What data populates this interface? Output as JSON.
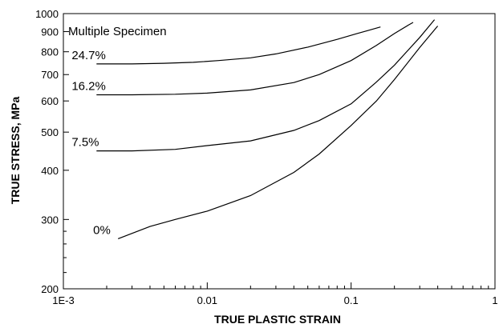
{
  "chart_data": {
    "type": "line",
    "title": "",
    "xlabel": "TRUE PLASTIC STRAIN",
    "ylabel": "TRUE STRESS, MPa",
    "xscale": "log",
    "yscale": "log",
    "xlim": [
      0.001,
      1
    ],
    "ylim": [
      200,
      1000
    ],
    "xtick_labels": [
      "1E-3",
      "0.01",
      "0.1",
      "1"
    ],
    "xtick_values": [
      0.001,
      0.01,
      0.1,
      1
    ],
    "ytick_labels": [
      "200",
      "300",
      "400",
      "500",
      "600",
      "700",
      "800",
      "900",
      "1000"
    ],
    "ytick_values": [
      200,
      300,
      400,
      500,
      600,
      700,
      800,
      900,
      1000
    ],
    "annotation": "Multiple Specimen",
    "grid": false,
    "series": [
      {
        "name": "24.7%",
        "x": [
          0.0017,
          0.003,
          0.005,
          0.008,
          0.012,
          0.02,
          0.03,
          0.05,
          0.08,
          0.11,
          0.13,
          0.16
        ],
        "y": [
          745,
          745,
          748,
          752,
          760,
          772,
          790,
          822,
          860,
          890,
          905,
          925
        ]
      },
      {
        "name": "16.2%",
        "x": [
          0.0017,
          0.003,
          0.006,
          0.01,
          0.02,
          0.04,
          0.06,
          0.1,
          0.15,
          0.2,
          0.25,
          0.27
        ],
        "y": [
          622,
          622,
          624,
          628,
          640,
          668,
          700,
          760,
          830,
          890,
          935,
          950
        ]
      },
      {
        "name": "7.5%",
        "x": [
          0.0017,
          0.003,
          0.006,
          0.01,
          0.02,
          0.04,
          0.06,
          0.1,
          0.15,
          0.2,
          0.3,
          0.38
        ],
        "y": [
          448,
          448,
          452,
          462,
          475,
          505,
          535,
          590,
          670,
          740,
          870,
          965
        ]
      },
      {
        "name": "0%",
        "x": [
          0.0024,
          0.004,
          0.006,
          0.01,
          0.02,
          0.04,
          0.06,
          0.1,
          0.15,
          0.2,
          0.3,
          0.4
        ],
        "y": [
          268,
          288,
          300,
          315,
          345,
          395,
          440,
          520,
          600,
          680,
          820,
          930
        ]
      }
    ]
  }
}
